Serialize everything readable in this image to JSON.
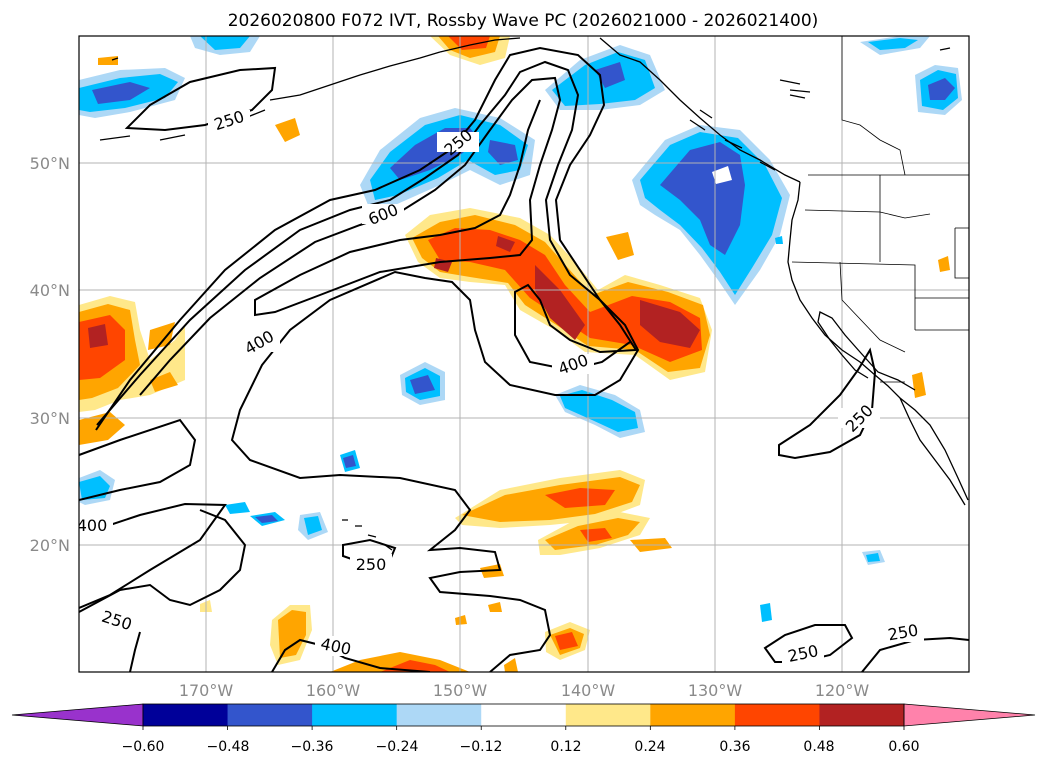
{
  "title": "2026020800 F072 IVT, Rossby Wave PC (2026021000 - 2026021400)",
  "map": {
    "lat_labels": [
      "50°N",
      "40°N",
      "30°N",
      "20°N"
    ],
    "lon_labels": [
      "170°W",
      "160°W",
      "150°W",
      "140°W",
      "130°W",
      "120°W"
    ],
    "extent": {
      "lon_min": -180,
      "lon_max": -110,
      "lat_min": 10,
      "lat_max": 60
    },
    "gridlines": true
  },
  "colorbar": {
    "colors": [
      "#9932cc",
      "#000099",
      "#3355cc",
      "#00bfff",
      "#add8f6",
      "#ffffff",
      "#ffe88a",
      "#ffa500",
      "#ff4500",
      "#b22222",
      "#ff82ab"
    ],
    "tick_labels": [
      "−0.60",
      "−0.48",
      "−0.36",
      "−0.24",
      "−0.12",
      "0.12",
      "0.24",
      "0.36",
      "0.48",
      "0.60"
    ],
    "extend": "both"
  },
  "contour_labels": [
    {
      "text": "250",
      "label_id": "c1"
    },
    {
      "text": "250",
      "label_id": "c2"
    },
    {
      "text": "600",
      "label_id": "c3"
    },
    {
      "text": "400",
      "label_id": "c4"
    },
    {
      "text": "400",
      "label_id": "c5"
    },
    {
      "text": "250",
      "label_id": "c6"
    },
    {
      "text": "400",
      "label_id": "c7"
    },
    {
      "text": "250",
      "label_id": "c8"
    },
    {
      "text": "250",
      "label_id": "c9"
    },
    {
      "text": "400",
      "label_id": "c10"
    },
    {
      "text": "250",
      "label_id": "c11"
    },
    {
      "text": "250",
      "label_id": "c12"
    }
  ]
}
